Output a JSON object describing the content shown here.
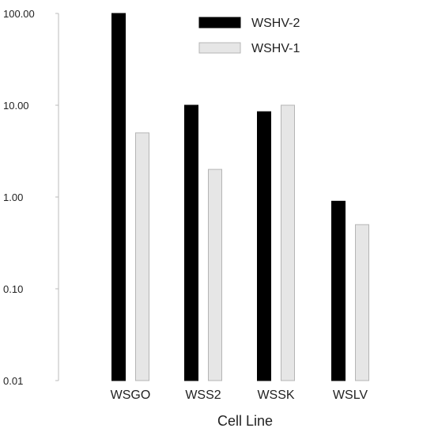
{
  "chart_data": {
    "type": "bar",
    "scale": "log",
    "xlabel": "Cell Line",
    "ylabel": "",
    "ylim": [
      0.01,
      100
    ],
    "yticks": [
      {
        "value": 100,
        "label": "100.00"
      },
      {
        "value": 10,
        "label": "10.00"
      },
      {
        "value": 1,
        "label": "1.00"
      },
      {
        "value": 0.1,
        "label": "0.10"
      },
      {
        "value": 0.01,
        "label": "0.01"
      }
    ],
    "categories": [
      "WSGO",
      "WSS2",
      "WSSK",
      "WSLV"
    ],
    "series": [
      {
        "name": "WSHV-2",
        "color": "#000000",
        "values": [
          100,
          10,
          8.5,
          0.9
        ]
      },
      {
        "name": "WSHV-1",
        "color": "#e6e6e6",
        "values": [
          5,
          2,
          10,
          0.5
        ]
      }
    ],
    "legend": "top-right",
    "grid": false
  }
}
